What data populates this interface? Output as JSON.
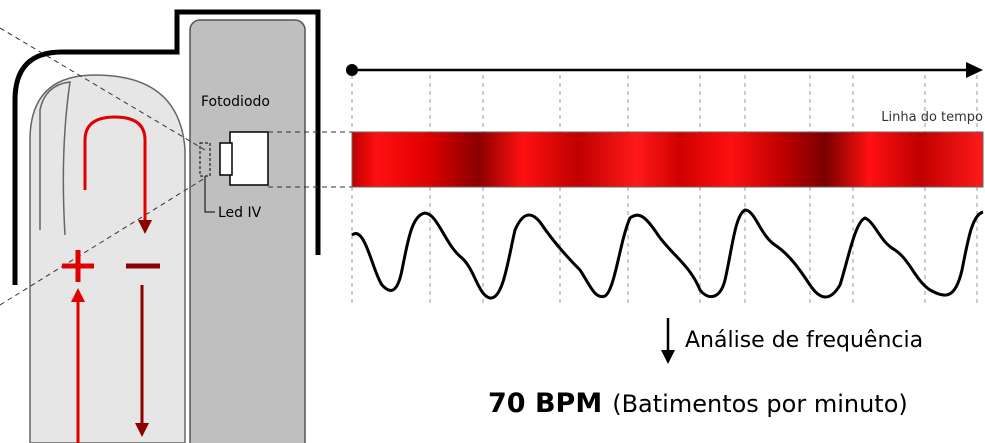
{
  "labels": {
    "photodiode": "Fotodiodo",
    "led": "Led IV",
    "timeline": "Linha do tempo",
    "analysis": "Análise de frequência",
    "bpm": "70 BPM",
    "bpm_note": "(Batimentos por minuto)"
  }
}
